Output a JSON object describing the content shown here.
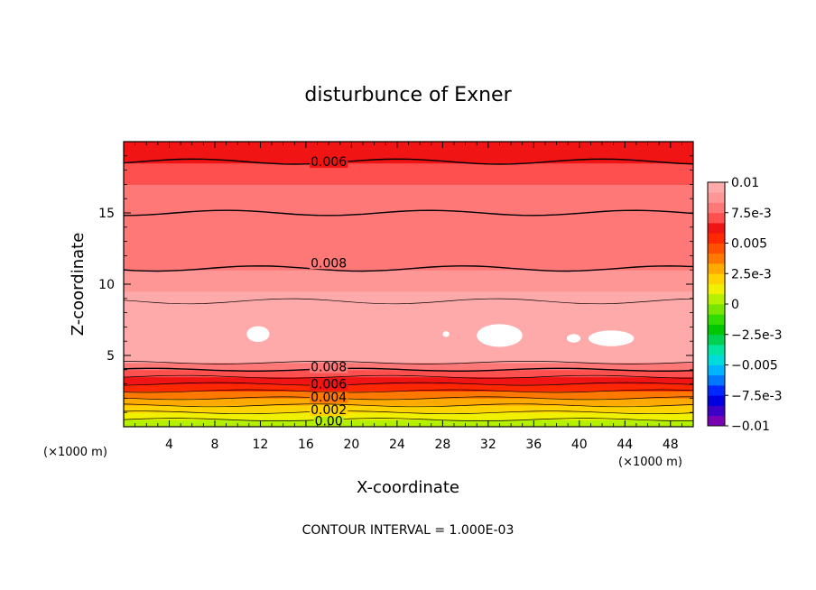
{
  "chart_data": {
    "type": "heatmap",
    "title": "disturbunce of Exner",
    "xlabel": "X-coordinate",
    "ylabel": "Z-coordinate",
    "x_unit_left": "(×1000 m)",
    "x_unit_right": "(×1000 m)",
    "xlim": [
      0,
      50
    ],
    "ylim": [
      0,
      20
    ],
    "x_ticks": [
      4,
      8,
      12,
      16,
      20,
      24,
      28,
      32,
      36,
      40,
      44,
      48
    ],
    "y_ticks": [
      5,
      10,
      15
    ],
    "contour_interval_text": "CONTOUR INTERVAL = 1.000E-03",
    "contour_labels": [
      {
        "text": "0.006",
        "x": 18,
        "z": 18.6
      },
      {
        "text": "0.008",
        "x": 18,
        "z": 11.5
      },
      {
        "text": "0.008",
        "x": 18,
        "z": 4.2
      },
      {
        "text": "0.006",
        "x": 18,
        "z": 3.0
      },
      {
        "text": "0.004",
        "x": 18,
        "z": 2.1
      },
      {
        "text": "0.002",
        "x": 18,
        "z": 1.2
      },
      {
        "text": "0.00",
        "x": 18,
        "z": 0.4
      }
    ],
    "colorbar": {
      "min": -0.01,
      "max": 0.01,
      "tick_labels": [
        "0.01",
        "7.5e-3",
        "0.005",
        "2.5e-3",
        "0",
        "−2.5e-3",
        "−0.005",
        "−7.5e-3",
        "−0.01"
      ],
      "colors": [
        "#7b00b4",
        "#3c00c8",
        "#0000e0",
        "#0028ff",
        "#0078ff",
        "#00b4ff",
        "#00dcdc",
        "#00e6a0",
        "#00d250",
        "#00c800",
        "#32dc00",
        "#78e600",
        "#b4f000",
        "#f0f000",
        "#ffd200",
        "#ffaa00",
        "#ff7800",
        "#ff5000",
        "#ff2800",
        "#f01414",
        "#ff5050",
        "#ff7878",
        "#ff9696",
        "#ffaaaa"
      ]
    },
    "layers": [
      {
        "z": 0.0,
        "value": 0.0
      },
      {
        "z": 0.5,
        "value": 0.001
      },
      {
        "z": 1.0,
        "value": 0.002
      },
      {
        "z": 1.5,
        "value": 0.003
      },
      {
        "z": 2.0,
        "value": 0.004
      },
      {
        "z": 2.5,
        "value": 0.005
      },
      {
        "z": 3.0,
        "value": 0.006
      },
      {
        "z": 3.5,
        "value": 0.007
      },
      {
        "z": 4.0,
        "value": 0.008
      },
      {
        "z": 4.5,
        "value": 0.0092
      },
      {
        "z": 5.5,
        "value": 0.0098
      },
      {
        "z": 8.5,
        "value": 0.0092
      },
      {
        "z": 9.5,
        "value": 0.0085
      },
      {
        "z": 11.0,
        "value": 0.008
      },
      {
        "z": 15.0,
        "value": 0.0075
      },
      {
        "z": 17.0,
        "value": 0.007
      },
      {
        "z": 18.5,
        "value": 0.006
      },
      {
        "z": 20.0,
        "value": 0.0055
      }
    ],
    "contour_lines_z": [
      0.5,
      1.0,
      1.5,
      2.0,
      2.5,
      3.0,
      3.5,
      4.0,
      4.5,
      8.8,
      11.1,
      15.0,
      18.6
    ],
    "white_blobs": [
      {
        "x": 11.8,
        "z": 6.5,
        "rx": 1.0,
        "rz": 0.55
      },
      {
        "x": 28.3,
        "z": 6.5,
        "rx": 0.3,
        "rz": 0.2
      },
      {
        "x": 33.0,
        "z": 6.4,
        "rx": 2.0,
        "rz": 0.8
      },
      {
        "x": 39.5,
        "z": 6.2,
        "rx": 0.6,
        "rz": 0.3
      },
      {
        "x": 42.8,
        "z": 6.2,
        "rx": 2.0,
        "rz": 0.55
      }
    ]
  }
}
